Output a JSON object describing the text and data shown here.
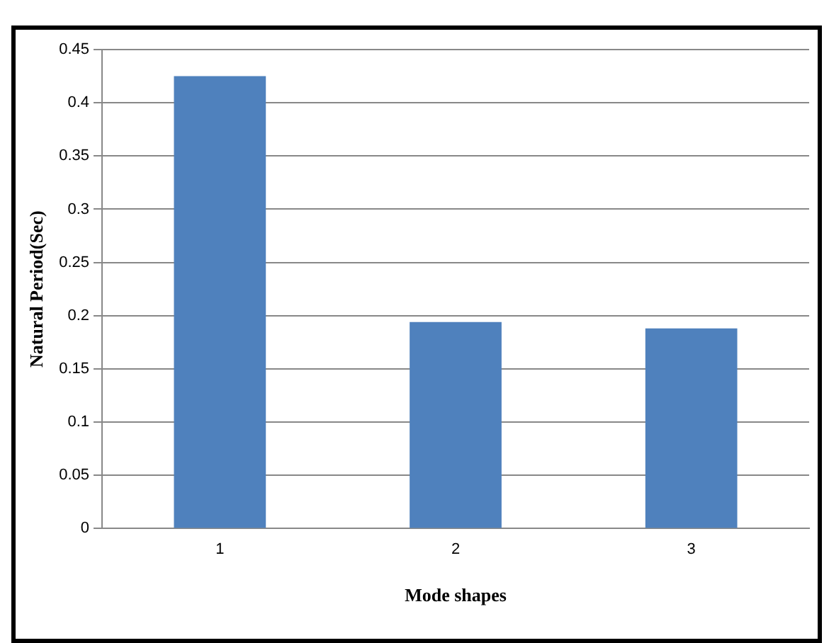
{
  "chart_data": {
    "type": "bar",
    "categories": [
      "1",
      "2",
      "3"
    ],
    "values": [
      0.425,
      0.194,
      0.188
    ],
    "color": "#4f81bd",
    "xlabel": "Mode shapes",
    "ylabel": "Natural Period(Sec)",
    "ylim": [
      0,
      0.45
    ],
    "yticks": [
      0,
      0.05,
      0.1,
      0.15,
      0.2,
      0.25,
      0.3,
      0.35,
      0.4,
      0.45
    ],
    "grid": "y"
  }
}
